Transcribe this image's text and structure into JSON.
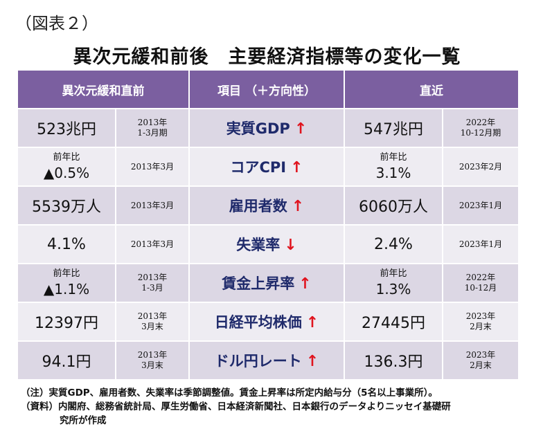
{
  "figure_label": "（図表２）",
  "title": "異次元緩和前後　主要経済指標等の変化一覧",
  "headers": {
    "before": "異次元緩和直前",
    "item": "項目 （＋方向性）",
    "recent": "直近"
  },
  "rows": [
    {
      "before_sub": "",
      "before_value": "523兆円",
      "before_date": "2013年\n1-3月期",
      "item": "実質GDP",
      "arrow": "↑",
      "recent_sub": "",
      "recent_value": "547兆円",
      "recent_date": "2022年\n10-12月期"
    },
    {
      "before_sub": "前年比",
      "before_value": "▲0.5%",
      "before_date": "2013年3月",
      "item": "コアCPI",
      "arrow": "↑",
      "recent_sub": "前年比",
      "recent_value": "3.1%",
      "recent_date": "2023年2月"
    },
    {
      "before_sub": "",
      "before_value": "5539万人",
      "before_date": "2013年3月",
      "item": "雇用者数",
      "arrow": "↑",
      "recent_sub": "",
      "recent_value": "6060万人",
      "recent_date": "2023年1月"
    },
    {
      "before_sub": "",
      "before_value": "4.1%",
      "before_date": "2013年3月",
      "item": "失業率",
      "arrow": "↓",
      "recent_sub": "",
      "recent_value": "2.4%",
      "recent_date": "2023年1月"
    },
    {
      "before_sub": "前年比",
      "before_value": "▲1.1%",
      "before_date": "2013年\n1-3月",
      "item": "賃金上昇率",
      "arrow": "↑",
      "recent_sub": "前年比",
      "recent_value": "1.3%",
      "recent_date": "2022年\n10-12月"
    },
    {
      "before_sub": "",
      "before_value": "12397円",
      "before_date": "2013年\n3月末",
      "item": "日経平均株価",
      "arrow": "↑",
      "recent_sub": "",
      "recent_value": "27445円",
      "recent_date": "2023年\n2月末"
    },
    {
      "before_sub": "",
      "before_value": "94.1円",
      "before_date": "2013年\n3月末",
      "item": "ドル円レート",
      "arrow": "↑",
      "recent_sub": "",
      "recent_value": "136.3円",
      "recent_date": "2023年\n2月末"
    }
  ],
  "notes": {
    "line1": "（注）実質GDP、雇用者数、失業率は季節調整値。賃金上昇率は所定内給与分（5名以上事業所）。",
    "line2": "（資料）内閣府、総務省統計局、厚生労働省、日本経済新聞社、日本銀行のデータよりニッセイ基礎研",
    "line3": "究所が作成"
  }
}
